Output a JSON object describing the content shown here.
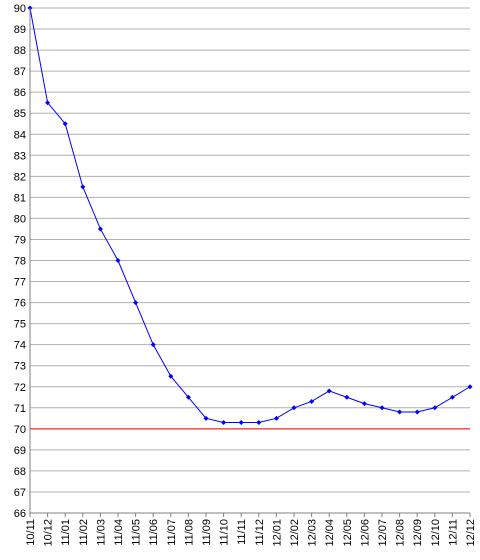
{
  "chart_data": {
    "type": "line",
    "title": "",
    "xlabel": "",
    "ylabel": "",
    "ylim": [
      66,
      90
    ],
    "grid": true,
    "legend": "none",
    "y_ticks": [
      "66",
      "67",
      "68",
      "69",
      "70",
      "71",
      "72",
      "73",
      "74",
      "75",
      "76",
      "77",
      "78",
      "79",
      "80",
      "81",
      "82",
      "83",
      "84",
      "85",
      "86",
      "87",
      "88",
      "89",
      "90"
    ],
    "x_ticks": [
      "10/11",
      "10/12",
      "11/01",
      "11/02",
      "11/03",
      "11/04",
      "11/05",
      "11/06",
      "11/07",
      "11/08",
      "11/09",
      "11/10",
      "11/11",
      "11/12",
      "12/01",
      "12/02",
      "12/03",
      "12/04",
      "12/05",
      "12/06",
      "12/07",
      "12/08",
      "12/09",
      "12/10",
      "12/11",
      "12/12"
    ],
    "series": [
      {
        "color": "#0000ff",
        "marker": "diamond",
        "x": [
          "10/11",
          "10/12",
          "11/01",
          "11/02",
          "11/03",
          "11/04",
          "11/05",
          "11/06",
          "11/07",
          "11/08",
          "11/09",
          "11/10",
          "11/11",
          "11/12",
          "12/01",
          "12/02",
          "12/03",
          "12/04",
          "12/05",
          "12/06",
          "12/07",
          "12/08",
          "12/09",
          "12/10",
          "12/11",
          "12/12"
        ],
        "values": [
          90.0,
          85.5,
          84.5,
          81.5,
          79.5,
          78.0,
          76.0,
          74.0,
          72.5,
          71.5,
          70.5,
          70.3,
          70.3,
          70.3,
          70.5,
          71.0,
          71.3,
          71.8,
          71.5,
          71.2,
          71.0,
          70.8,
          70.8,
          71.0,
          71.5,
          72.0
        ]
      }
    ],
    "reference_line": {
      "value": 70,
      "color": "#ff0000"
    }
  }
}
